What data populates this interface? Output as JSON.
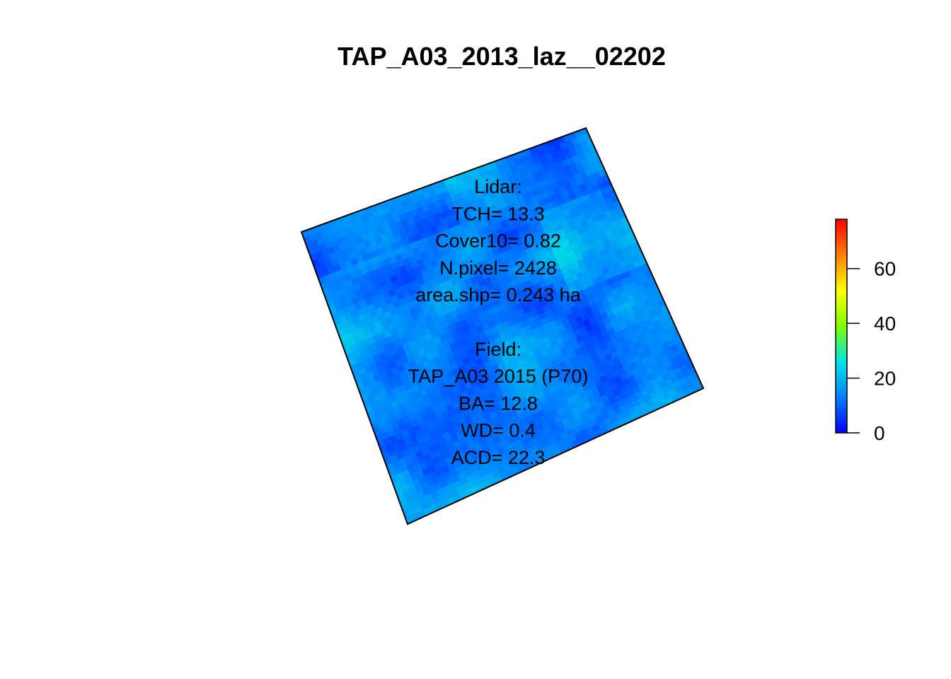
{
  "chart_data": {
    "type": "heatmap",
    "title": "TAP_A03_2013_laz__02202",
    "xlabel": "",
    "ylabel": "",
    "grid": false,
    "colorbar": {
      "range": [
        0,
        78
      ],
      "ticks": [
        0,
        20,
        40,
        60
      ],
      "tick_labels": [
        "0",
        "20",
        "40",
        "60"
      ],
      "palette": [
        "#0000ff",
        "#0080ff",
        "#00e5e5",
        "#7fff00",
        "#ffff00",
        "#ff8000",
        "#ff0000"
      ],
      "placement": "right"
    },
    "raster": {
      "value_min_visible": 2,
      "value_max_visible": 24,
      "typical_value": 13
    },
    "annotations": [
      "Lidar:",
      "TCH= 13.3",
      "Cover10= 0.82",
      "N.pixel= 2428",
      "area.shp= 0.243 ha",
      "",
      "Field:",
      "TAP_A03 2015 (P70)",
      "BA= 12.8",
      "WD= 0.4",
      "ACD= 22.3"
    ]
  }
}
